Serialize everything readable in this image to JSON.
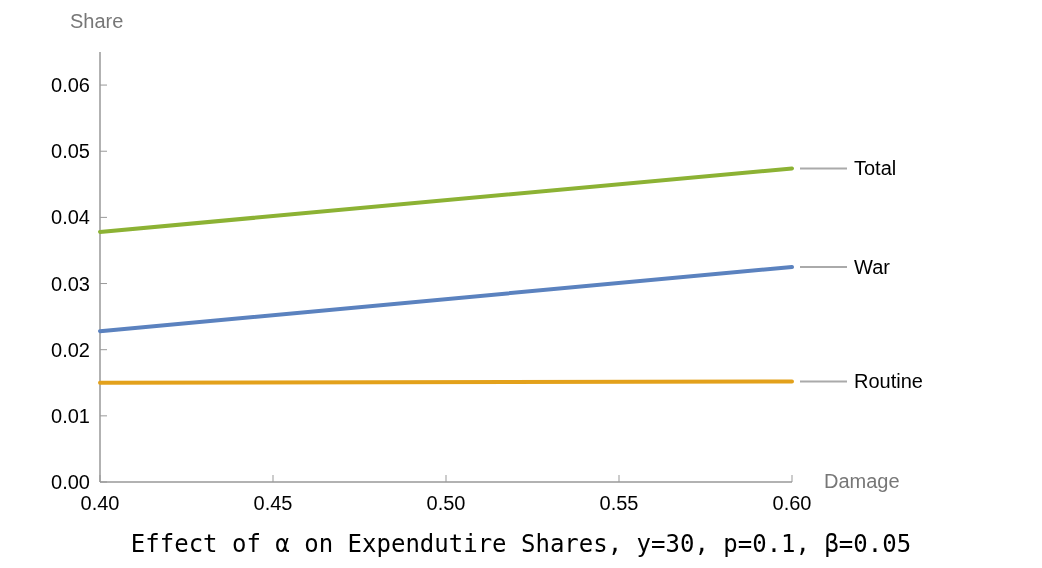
{
  "chart_data": {
    "type": "line",
    "title": "Effect of α on Expendutire Shares, y=30, p=0.1, β=0.05",
    "xlabel": "Damage",
    "ylabel": "Share",
    "x": [
      0.4,
      0.6
    ],
    "series": [
      {
        "name": "Total",
        "color": "#8cb234",
        "values": [
          0.0378,
          0.0474
        ]
      },
      {
        "name": "War",
        "color": "#5b82bf",
        "values": [
          0.0228,
          0.0325
        ]
      },
      {
        "name": "Routine",
        "color": "#e3a11b",
        "values": [
          0.015,
          0.0152
        ]
      }
    ],
    "xlim": [
      0.4,
      0.6
    ],
    "ylim": [
      0,
      0.065
    ],
    "xticks": [
      {
        "value": 0.4,
        "label": "0.40"
      },
      0.45,
      {
        "value": 0.5,
        "label": "0.50"
      },
      0.55,
      {
        "value": 0.6,
        "label": "0.60"
      }
    ],
    "yticks": [
      {
        "value": 0,
        "label": "0.00"
      },
      0.01,
      0.02,
      0.03,
      0.04,
      0.05,
      0.06
    ],
    "grid": false,
    "legend": false,
    "marker": "none",
    "line_style": "solid"
  }
}
